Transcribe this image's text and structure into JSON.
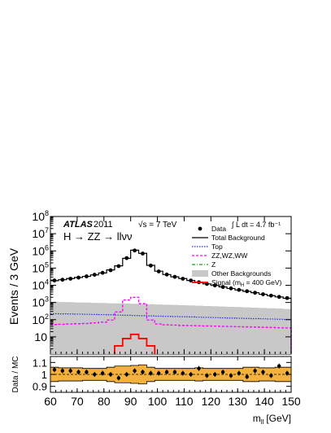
{
  "chart_data": [
    {
      "type": "line",
      "panel": "main",
      "experiment": "ATLAS",
      "year": "2011",
      "energy_label": "√s = 7 TeV",
      "lumi_label": "∫ L dt = 4.7 fb⁻¹",
      "process_label": "H → ZZ → llνν",
      "ylabel": "Events / 3 GeV",
      "xlabel": "m",
      "xlabel_sub": "ll",
      "xlabel_unit": "[GeV]",
      "xlim": [
        60,
        150
      ],
      "ylim": [
        1,
        100000000
      ],
      "log_y": true,
      "x_ticks": [
        "60",
        "70",
        "80",
        "90",
        "100",
        "110",
        "120",
        "130",
        "140",
        "150"
      ],
      "y_ticks": [
        {
          "base": "10",
          "exp": "",
          "value": 10
        },
        {
          "base": "10",
          "exp": "2",
          "value": 100
        },
        {
          "base": "10",
          "exp": "3",
          "value": 1000
        },
        {
          "base": "10",
          "exp": "4",
          "value": 10000
        },
        {
          "base": "10",
          "exp": "5",
          "value": 100000
        },
        {
          "base": "10",
          "exp": "6",
          "value": 1000000
        },
        {
          "base": "10",
          "exp": "7",
          "value": 10000000
        },
        {
          "base": "10",
          "exp": "8",
          "value": 100000000
        }
      ],
      "legend_position": "top-right",
      "legend": [
        {
          "label": "Data",
          "style": "marker",
          "color": "#000000"
        },
        {
          "label": "Total Background",
          "style": "line",
          "color": "#000000"
        },
        {
          "label": "Top",
          "style": "dotted",
          "color": "#2a2ae0"
        },
        {
          "label": "ZZ,WZ,WW",
          "style": "dashed",
          "color": "#ff00ff"
        },
        {
          "label": "Z",
          "style": "dashdot",
          "color": "#1a9a1a"
        },
        {
          "label": "Other Backgrounds",
          "style": "fill",
          "color": "#c8c8c8"
        },
        {
          "label": "Signal (m",
          "label_sub": "H",
          "label_tail": " = 400 GeV)",
          "style": "line",
          "color": "#ff0000"
        }
      ],
      "bin_edges": [
        60,
        63,
        66,
        69,
        72,
        75,
        78,
        81,
        84,
        87,
        90,
        93,
        96,
        99,
        102,
        105,
        108,
        111,
        114,
        117,
        120,
        123,
        126,
        129,
        132,
        135,
        138,
        141,
        144,
        147,
        150
      ],
      "series": [
        {
          "name": "Data",
          "style": "points",
          "color": "#000000",
          "values": [
            19000,
            21000,
            24000,
            28000,
            33000,
            41000,
            53000,
            75000,
            130000,
            380000,
            1050000,
            700000,
            140000,
            64000,
            42000,
            31000,
            24000,
            19000,
            15000,
            12000,
            9800,
            8000,
            6600,
            5400,
            4500,
            3700,
            3000,
            2500,
            2100,
            1800
          ]
        },
        {
          "name": "Total Background",
          "style": "step",
          "color": "#000000",
          "values": [
            18500,
            21000,
            24500,
            28500,
            33000,
            40000,
            52000,
            78000,
            135000,
            370000,
            1100000,
            720000,
            145000,
            66000,
            42000,
            31000,
            24500,
            19000,
            15000,
            12000,
            9800,
            8000,
            6500,
            5300,
            4400,
            3700,
            3000,
            2500,
            2100,
            1750
          ]
        },
        {
          "name": "Other Backgrounds",
          "style": "fill",
          "color": "#c8c8c8",
          "values": [
            1100,
            1060,
            1040,
            1000,
            980,
            950,
            930,
            900,
            880,
            860,
            840,
            810,
            790,
            760,
            740,
            720,
            690,
            670,
            650,
            620,
            600,
            580,
            560,
            540,
            520,
            500,
            480,
            460,
            440,
            420
          ]
        },
        {
          "name": "Top",
          "style": "step-dotted",
          "color": "#2a2ae0",
          "values": [
            220,
            218,
            214,
            210,
            205,
            200,
            196,
            192,
            186,
            180,
            175,
            170,
            165,
            160,
            156,
            152,
            148,
            144,
            140,
            136,
            132,
            128,
            124,
            121,
            118,
            115,
            112,
            109,
            106,
            103
          ]
        },
        {
          "name": "ZZ,WZ,WW",
          "style": "step-dashed",
          "color": "#ff00ff",
          "values": [
            52,
            54,
            56,
            58,
            60,
            65,
            72,
            95,
            280,
            1400,
            2000,
            850,
            95,
            56,
            50,
            48,
            46,
            45,
            44,
            43,
            42,
            41,
            40,
            39,
            38,
            37,
            36,
            35,
            34,
            33
          ]
        },
        {
          "name": "Signal (mH = 400 GeV)",
          "style": "step",
          "color": "#ff0000",
          "values": [
            null,
            null,
            null,
            null,
            null,
            null,
            null,
            null,
            3,
            8,
            14,
            8,
            3,
            null,
            null,
            null,
            null,
            null,
            null,
            null,
            null,
            null,
            null,
            null,
            null,
            null,
            null,
            null,
            null,
            null
          ]
        }
      ]
    },
    {
      "type": "scatter",
      "panel": "ratio",
      "ylabel": "Data / MC",
      "ylim": [
        0.85,
        1.15
      ],
      "y_ticks": [
        "0.9",
        "1",
        "1.1"
      ],
      "band_color": "#f5b13d",
      "band_halfwidth": [
        0.06,
        0.055,
        0.055,
        0.055,
        0.05,
        0.05,
        0.05,
        0.06,
        0.07,
        0.07,
        0.075,
        0.08,
        0.06,
        0.05,
        0.05,
        0.05,
        0.05,
        0.05,
        0.055,
        0.05,
        0.05,
        0.05,
        0.05,
        0.05,
        0.06,
        0.06,
        0.055,
        0.055,
        0.06,
        0.06
      ],
      "x": [
        61.5,
        64.5,
        67.5,
        70.5,
        73.5,
        76.5,
        79.5,
        82.5,
        85.5,
        88.5,
        91.5,
        94.5,
        97.5,
        100.5,
        103.5,
        106.5,
        109.5,
        112.5,
        115.5,
        118.5,
        121.5,
        124.5,
        127.5,
        130.5,
        133.5,
        136.5,
        139.5,
        142.5,
        145.5,
        148.5
      ],
      "values": [
        1.04,
        1.03,
        1.03,
        1.02,
        1.02,
        1.0,
        1.01,
        1.0,
        0.97,
        1.0,
        1.03,
        1.02,
        1.01,
        1.01,
        1.02,
        1.02,
        1.01,
        1.0,
        1.05,
        0.99,
        1.0,
        1.02,
        0.99,
        1.01,
        0.98,
        1.03,
        1.02,
        0.99,
        1.07,
        1.01
      ]
    }
  ]
}
